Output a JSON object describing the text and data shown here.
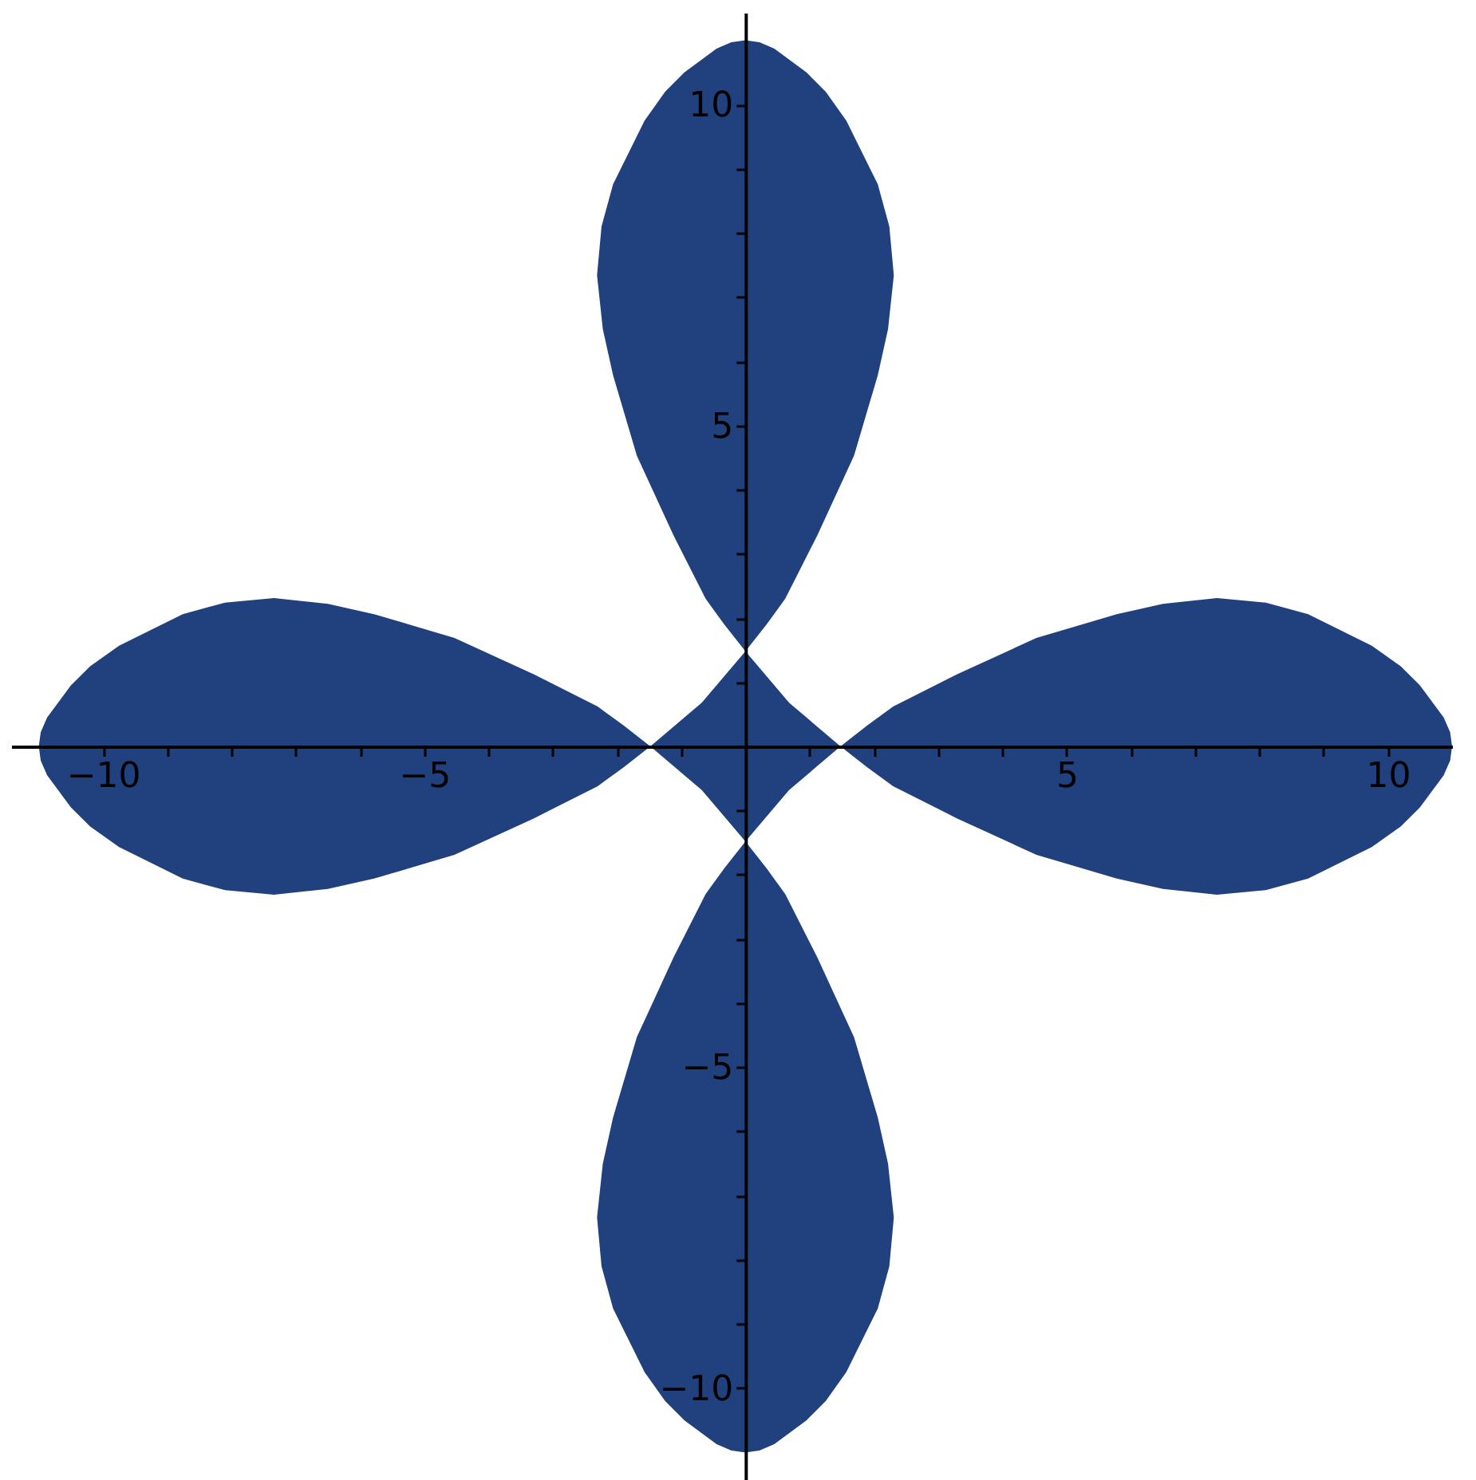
{
  "chart_data": {
    "type": "area",
    "xlim": [
      -11.43,
      11.0
    ],
    "ylim": [
      -11.43,
      11.43
    ],
    "xticks": [
      {
        "value": -10,
        "label": "−10"
      },
      {
        "value": -9,
        "label": null
      },
      {
        "value": -8,
        "label": null
      },
      {
        "value": -7,
        "label": null
      },
      {
        "value": -6,
        "label": null
      },
      {
        "value": -5,
        "label": "−5"
      },
      {
        "value": -4,
        "label": null
      },
      {
        "value": -3,
        "label": null
      },
      {
        "value": -2,
        "label": null
      },
      {
        "value": -1,
        "label": null
      },
      {
        "value": 1,
        "label": null
      },
      {
        "value": 2,
        "label": null
      },
      {
        "value": 3,
        "label": null
      },
      {
        "value": 4,
        "label": null
      },
      5,
      {
        "value": 6,
        "label": null
      },
      {
        "value": 7,
        "label": null
      },
      {
        "value": 8,
        "label": null
      },
      {
        "value": 9,
        "label": null
      },
      10
    ],
    "yticks": [
      {
        "value": -10,
        "label": "−10"
      },
      {
        "value": -9,
        "label": null
      },
      {
        "value": -8,
        "label": null
      },
      {
        "value": -7,
        "label": null
      },
      {
        "value": -6,
        "label": null
      },
      {
        "value": -5,
        "label": "−5"
      },
      {
        "value": -4,
        "label": null
      },
      {
        "value": -3,
        "label": null
      },
      {
        "value": -2,
        "label": null
      },
      {
        "value": -1,
        "label": null
      },
      {
        "value": 1,
        "label": null
      },
      {
        "value": 2,
        "label": null
      },
      {
        "value": 3,
        "label": null
      },
      {
        "value": 4,
        "label": null
      },
      5,
      {
        "value": 6,
        "label": null
      },
      {
        "value": 7,
        "label": null
      },
      {
        "value": 8,
        "label": null
      },
      {
        "value": 9,
        "label": null
      },
      10
    ],
    "grid": false,
    "legend": false,
    "series": [
      {
        "color": "#21417e",
        "x": [
          1.48,
          1.9,
          2.3,
          3.29,
          4.53,
          5.78,
          6.5,
          7.34,
          8.1,
          8.76,
          9.75,
          10.2,
          10.5,
          10.87,
          10.97,
          11.0,
          10.97,
          10.87,
          10.5,
          10.2,
          9.75,
          8.76,
          8.1,
          7.34,
          6.5,
          5.78,
          4.53,
          3.29,
          2.3,
          1.9,
          1.48,
          0.68,
          0,
          0.33,
          0.62,
          1.12,
          1.69,
          2.06,
          2.22,
          2.31,
          2.24,
          2.06,
          1.57,
          1.25,
          0.95,
          0.45,
          0.22,
          0,
          -0.22,
          -0.45,
          -0.95,
          -1.25,
          -1.57,
          -2.06,
          -2.24,
          -2.31,
          -2.22,
          -2.06,
          -1.69,
          -1.12,
          -0.62,
          -0.33,
          0,
          -0.68,
          -1.48,
          -1.9,
          -2.3,
          -3.29,
          -4.53,
          -5.78,
          -6.5,
          -7.34,
          -8.1,
          -8.76,
          -9.75,
          -10.2,
          -10.5,
          -10.87,
          -10.97,
          -11.0,
          -10.97,
          -10.87,
          -10.5,
          -10.2,
          -9.75,
          -8.76,
          -8.1,
          -7.34,
          -6.5,
          -5.78,
          -4.53,
          -3.29,
          -2.3,
          -1.9,
          -1.48,
          -0.68,
          0,
          -0.33,
          -0.62,
          -1.12,
          -1.69,
          -2.06,
          -2.22,
          -2.31,
          -2.24,
          -2.06,
          -1.57,
          -1.25,
          -0.95,
          -0.45,
          -0.22,
          0,
          0.22,
          0.45,
          0.95,
          1.25,
          1.57,
          2.06,
          2.24,
          2.31,
          2.22,
          2.06,
          1.69,
          1.12,
          0.62,
          0.33,
          0,
          0.68,
          1.48
        ],
        "values": [
          0,
          0.33,
          0.62,
          1.12,
          1.69,
          2.06,
          2.22,
          2.31,
          2.24,
          2.06,
          1.57,
          1.25,
          0.95,
          0.45,
          0.22,
          0,
          -0.22,
          -0.45,
          -0.95,
          -1.25,
          -1.57,
          -2.06,
          -2.24,
          -2.31,
          -2.22,
          -2.06,
          -1.69,
          -1.12,
          -0.62,
          -0.33,
          0,
          -0.68,
          -1.48,
          -1.9,
          -2.3,
          -3.29,
          -4.53,
          -5.78,
          -6.5,
          -7.34,
          -8.1,
          -8.76,
          -9.75,
          -10.2,
          -10.5,
          -10.87,
          -10.97,
          -11.0,
          -10.97,
          -10.87,
          -10.5,
          -10.2,
          -9.75,
          -8.76,
          -8.1,
          -7.34,
          -6.5,
          -5.78,
          -4.53,
          -3.29,
          -2.3,
          -1.9,
          -1.48,
          -0.68,
          0,
          -0.33,
          -0.62,
          -1.12,
          -1.69,
          -2.06,
          -2.22,
          -2.31,
          -2.24,
          -2.06,
          -1.57,
          -1.25,
          -0.95,
          -0.45,
          -0.22,
          0,
          0.22,
          0.45,
          0.95,
          1.25,
          1.57,
          2.06,
          2.24,
          2.31,
          2.22,
          2.06,
          1.69,
          1.12,
          0.62,
          0.33,
          0,
          0.68,
          1.48,
          1.9,
          2.3,
          3.29,
          4.53,
          5.78,
          6.5,
          7.34,
          8.1,
          8.76,
          9.75,
          10.2,
          10.5,
          10.87,
          10.97,
          11.0,
          10.97,
          10.87,
          10.5,
          10.2,
          9.75,
          8.76,
          8.1,
          7.34,
          6.5,
          5.78,
          4.53,
          3.29,
          2.3,
          1.9,
          1.48,
          0.68,
          0
        ]
      }
    ]
  }
}
